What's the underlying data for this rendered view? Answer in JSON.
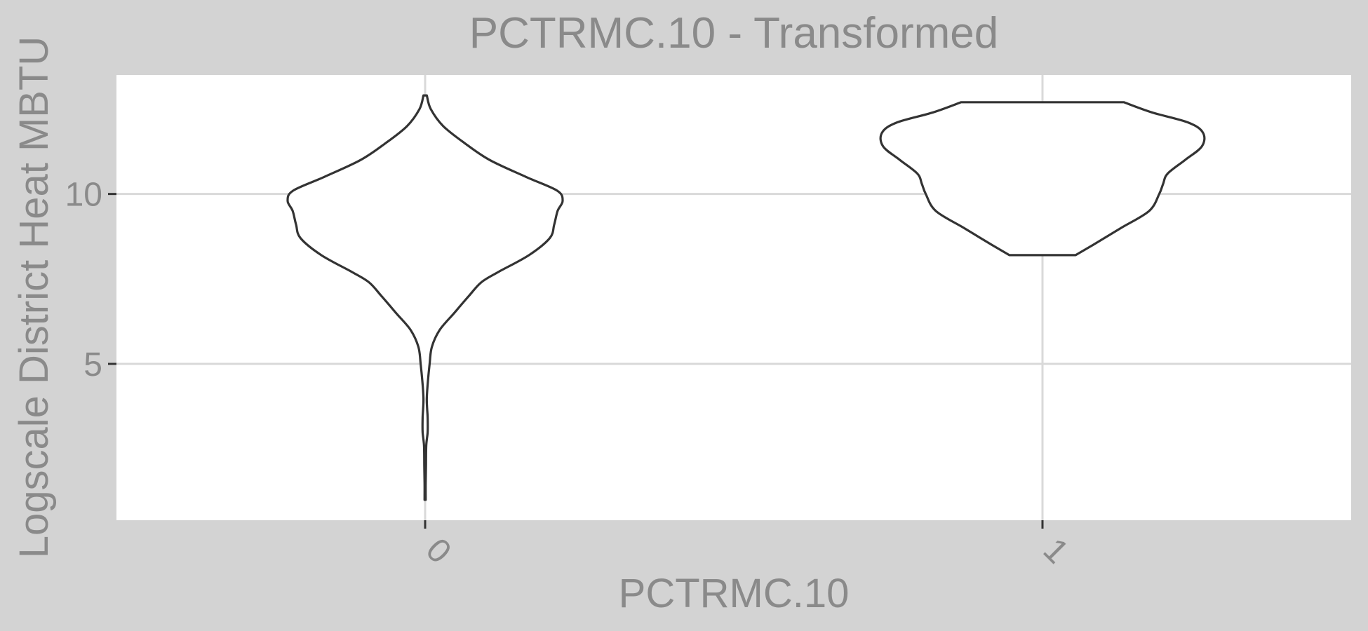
{
  "chart_data": {
    "type": "violin",
    "title": "PCTRMC.10 - Transformed",
    "xlabel": "PCTRMC.10",
    "ylabel": "Logscale District Heat MBTU",
    "categories": [
      "0",
      "1"
    ],
    "ylim": [
      0.4,
      13.5
    ],
    "yticks": [
      5,
      10
    ],
    "grid": true,
    "colors": {
      "panel_background": "#ffffff",
      "outer_background": "#d3d3d3",
      "outline": "#333333",
      "gridline": "#d9d9d9",
      "text": "#8a8a8a"
    },
    "violins": [
      {
        "category": "0",
        "y_min": 1.0,
        "y_max": 12.9,
        "profile": [
          [
            1.0,
            0.01
          ],
          [
            1.5,
            0.01
          ],
          [
            2.0,
            0.015
          ],
          [
            2.6,
            0.02
          ],
          [
            3.0,
            0.045
          ],
          [
            3.4,
            0.045
          ],
          [
            3.7,
            0.035
          ],
          [
            4.0,
            0.03
          ],
          [
            4.5,
            0.05
          ],
          [
            5.0,
            0.08
          ],
          [
            5.5,
            0.12
          ],
          [
            6.0,
            0.26
          ],
          [
            6.5,
            0.52
          ],
          [
            7.0,
            0.78
          ],
          [
            7.4,
            1.0
          ],
          [
            7.7,
            1.3
          ],
          [
            8.2,
            1.85
          ],
          [
            8.7,
            2.22
          ],
          [
            9.1,
            2.3
          ],
          [
            9.5,
            2.36
          ],
          [
            9.8,
            2.45
          ],
          [
            10.1,
            2.35
          ],
          [
            10.5,
            1.8
          ],
          [
            11.0,
            1.15
          ],
          [
            11.5,
            0.7
          ],
          [
            12.0,
            0.32
          ],
          [
            12.5,
            0.1
          ],
          [
            12.9,
            0.03
          ]
        ]
      },
      {
        "category": "1",
        "y_min": 8.2,
        "y_max": 12.7,
        "profile": [
          [
            8.2,
            0.59
          ],
          [
            8.5,
            0.9
          ],
          [
            9.0,
            1.4
          ],
          [
            9.5,
            1.9
          ],
          [
            10.0,
            2.08
          ],
          [
            10.3,
            2.15
          ],
          [
            10.6,
            2.23
          ],
          [
            11.0,
            2.54
          ],
          [
            11.4,
            2.84
          ],
          [
            11.8,
            2.86
          ],
          [
            12.1,
            2.6
          ],
          [
            12.4,
            1.95
          ],
          [
            12.7,
            1.45
          ]
        ]
      }
    ]
  }
}
